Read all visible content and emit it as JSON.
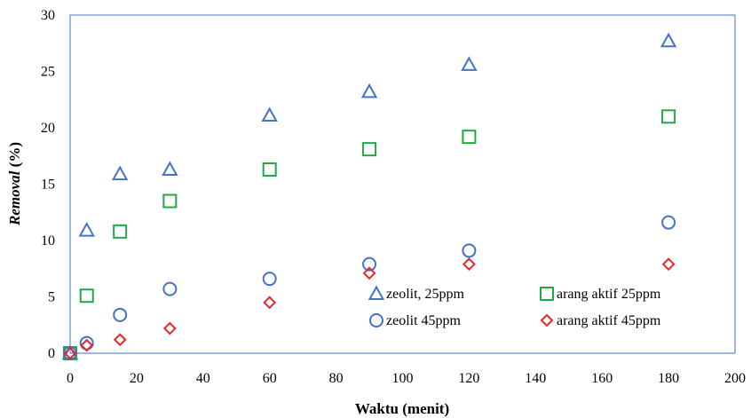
{
  "chart_data": {
    "type": "scatter",
    "title": "",
    "xlabel": "Waktu (menit)",
    "ylabel_italic": "Removal",
    "ylabel_rest": " (%)",
    "xlim": [
      0,
      200
    ],
    "ylim": [
      0,
      30
    ],
    "xticks": [
      0,
      20,
      40,
      60,
      80,
      100,
      120,
      140,
      160,
      180,
      200
    ],
    "yticks": [
      0,
      5,
      10,
      15,
      20,
      25,
      30
    ],
    "grid": false,
    "legend_position": "bottom-right, inside plot",
    "series": [
      {
        "name": "zeolit, 25ppm",
        "marker": "triangle",
        "color": "#4472C4",
        "x": [
          0,
          5,
          15,
          30,
          60,
          90,
          120,
          180
        ],
        "y": [
          0,
          10.9,
          15.9,
          16.3,
          21.1,
          23.2,
          25.6,
          27.7
        ]
      },
      {
        "name": "arang aktif 25ppm",
        "marker": "square",
        "color": "#22A846",
        "x": [
          0,
          5,
          15,
          30,
          60,
          90,
          120,
          180
        ],
        "y": [
          0,
          5.1,
          10.8,
          13.5,
          16.3,
          18.1,
          19.2,
          21.0
        ]
      },
      {
        "name": "zeolit 45ppm",
        "marker": "circle",
        "color": "#4472C4",
        "x": [
          0,
          5,
          15,
          30,
          60,
          90,
          120,
          180
        ],
        "y": [
          0,
          0.9,
          3.4,
          5.7,
          6.6,
          7.9,
          9.1,
          11.6
        ]
      },
      {
        "name": "arang aktif 45ppm",
        "marker": "diamond",
        "color": "#E8262A",
        "x": [
          0,
          5,
          15,
          30,
          60,
          90,
          120,
          180
        ],
        "y": [
          0,
          0.7,
          1.2,
          2.2,
          4.5,
          7.1,
          7.9,
          7.9
        ]
      }
    ]
  },
  "colors": {
    "frame": "#4472C4"
  }
}
